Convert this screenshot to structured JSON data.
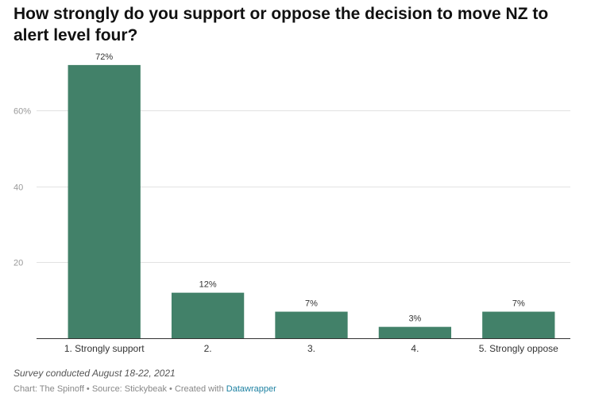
{
  "chart_data": {
    "type": "bar",
    "title": "How strongly do you support or oppose the decision to move NZ to alert level four?",
    "categories": [
      "1. Strongly support",
      "2.",
      "3.",
      "4.",
      "5. Strongly oppose"
    ],
    "values": [
      72,
      12,
      7,
      3,
      7
    ],
    "value_labels": [
      "72%",
      "12%",
      "7%",
      "3%",
      "7%"
    ],
    "ylim": [
      0,
      77
    ],
    "yticks": [
      20,
      40,
      60
    ],
    "ytick_labels": [
      "20",
      "40",
      "60%"
    ],
    "grid": true,
    "bar_color": "#428169",
    "xlabel": "",
    "ylabel": ""
  },
  "notes": "Survey conducted August 18-22, 2021",
  "footer": {
    "prefix": "Chart: The Spinoff • Source: Stickybeak • Created with ",
    "link": "Datawrapper"
  }
}
